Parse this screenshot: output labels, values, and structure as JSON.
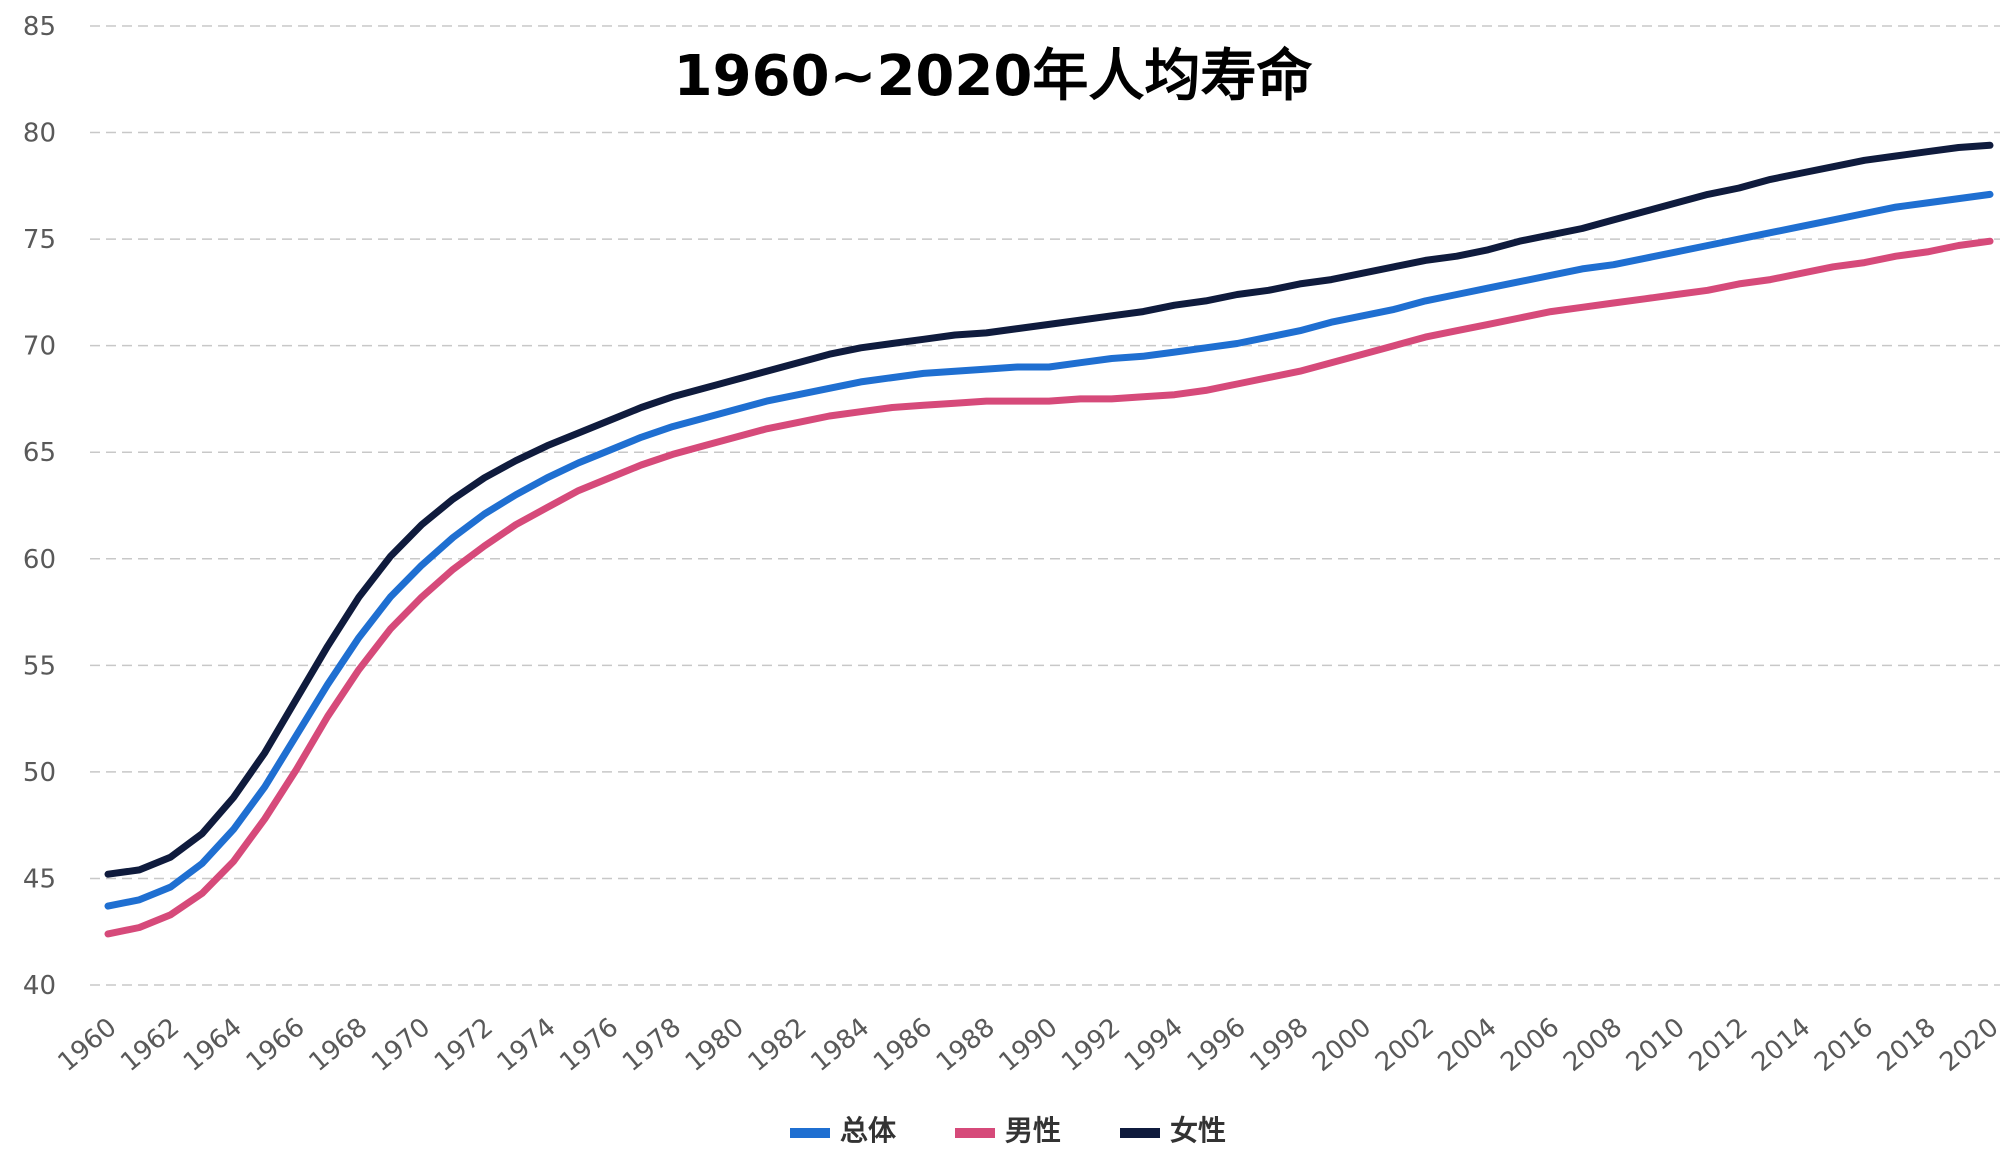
{
  "chart_data": {
    "type": "line",
    "title": "1960~2020年人均寿命",
    "xlabel": "",
    "ylabel": "",
    "ylim": [
      40,
      85
    ],
    "yticks": [
      40,
      45,
      50,
      55,
      60,
      65,
      70,
      75,
      80,
      85
    ],
    "xticks": [
      1960,
      1962,
      1964,
      1966,
      1968,
      1970,
      1972,
      1974,
      1976,
      1978,
      1980,
      1982,
      1984,
      1986,
      1988,
      1990,
      1992,
      1994,
      1996,
      1998,
      2000,
      2002,
      2004,
      2006,
      2008,
      2010,
      2012,
      2014,
      2016,
      2018,
      2020
    ],
    "grid": "horizontal dashed",
    "legend_position": "bottom",
    "x": [
      1960,
      1961,
      1962,
      1963,
      1964,
      1965,
      1966,
      1967,
      1968,
      1969,
      1970,
      1971,
      1972,
      1973,
      1974,
      1975,
      1976,
      1977,
      1978,
      1979,
      1980,
      1981,
      1982,
      1983,
      1984,
      1985,
      1986,
      1987,
      1988,
      1989,
      1990,
      1991,
      1992,
      1993,
      1994,
      1995,
      1996,
      1997,
      1998,
      1999,
      2000,
      2001,
      2002,
      2003,
      2004,
      2005,
      2006,
      2007,
      2008,
      2009,
      2010,
      2011,
      2012,
      2013,
      2014,
      2015,
      2016,
      2017,
      2018,
      2019,
      2020
    ],
    "series": [
      {
        "name": "总体",
        "color": "#1f6fd1",
        "values": [
          43.7,
          44.0,
          44.6,
          45.7,
          47.3,
          49.3,
          51.7,
          54.1,
          56.3,
          58.2,
          59.7,
          61.0,
          62.1,
          63.0,
          63.8,
          64.5,
          65.1,
          65.7,
          66.2,
          66.6,
          67.0,
          67.4,
          67.7,
          68.0,
          68.3,
          68.5,
          68.7,
          68.8,
          68.9,
          69.0,
          69.0,
          69.2,
          69.4,
          69.5,
          69.7,
          69.9,
          70.1,
          70.4,
          70.7,
          71.1,
          71.4,
          71.7,
          72.1,
          72.4,
          72.7,
          73.0,
          73.3,
          73.6,
          73.8,
          74.1,
          74.4,
          74.7,
          75.0,
          75.3,
          75.6,
          75.9,
          76.2,
          76.5,
          76.7,
          76.9,
          77.1
        ]
      },
      {
        "name": "男性",
        "color": "#d64a7a",
        "values": [
          42.4,
          42.7,
          43.3,
          44.3,
          45.8,
          47.8,
          50.1,
          52.6,
          54.8,
          56.7,
          58.2,
          59.5,
          60.6,
          61.6,
          62.4,
          63.2,
          63.8,
          64.4,
          64.9,
          65.3,
          65.7,
          66.1,
          66.4,
          66.7,
          66.9,
          67.1,
          67.2,
          67.3,
          67.4,
          67.4,
          67.4,
          67.5,
          67.5,
          67.6,
          67.7,
          67.9,
          68.2,
          68.5,
          68.8,
          69.2,
          69.6,
          70.0,
          70.4,
          70.7,
          71.0,
          71.3,
          71.6,
          71.8,
          72.0,
          72.2,
          72.4,
          72.6,
          72.9,
          73.1,
          73.4,
          73.7,
          73.9,
          74.2,
          74.4,
          74.7,
          74.9
        ]
      },
      {
        "name": "女性",
        "color": "#0f1b3d",
        "values": [
          45.2,
          45.4,
          46.0,
          47.1,
          48.8,
          50.9,
          53.4,
          55.9,
          58.2,
          60.1,
          61.6,
          62.8,
          63.8,
          64.6,
          65.3,
          65.9,
          66.5,
          67.1,
          67.6,
          68.0,
          68.4,
          68.8,
          69.2,
          69.6,
          69.9,
          70.1,
          70.3,
          70.5,
          70.6,
          70.8,
          71.0,
          71.2,
          71.4,
          71.6,
          71.9,
          72.1,
          72.4,
          72.6,
          72.9,
          73.1,
          73.4,
          73.7,
          74.0,
          74.2,
          74.5,
          74.9,
          75.2,
          75.5,
          75.9,
          76.3,
          76.7,
          77.1,
          77.4,
          77.8,
          78.1,
          78.4,
          78.7,
          78.9,
          79.1,
          79.3,
          79.4
        ]
      }
    ]
  }
}
